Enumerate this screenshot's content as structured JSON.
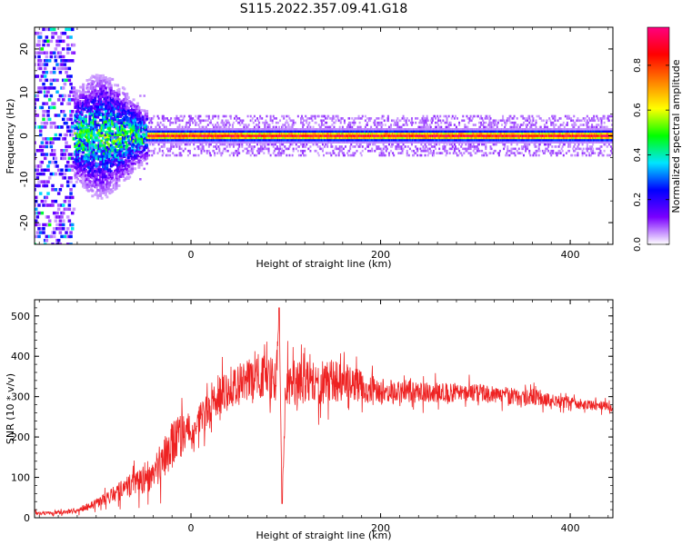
{
  "title": "S115.2022.357.09.41.G18",
  "chart_data": [
    {
      "type": "heatmap",
      "xlabel": "Height of straight line (km)",
      "ylabel": "Frequency (Hz)",
      "xlim": [
        -165,
        445
      ],
      "ylim": [
        -25,
        25
      ],
      "xticks": [
        0,
        200,
        400
      ],
      "yticks": [
        -20,
        -10,
        0,
        10,
        20
      ],
      "colorbar": {
        "label": "Normalized spectral amplitude",
        "range": [
          0,
          0.97
        ],
        "ticks": [
          0.0,
          0.2,
          0.4,
          0.6,
          0.8
        ],
        "colormap": [
          "#ffffff",
          "#7a00ff",
          "#0000ff",
          "#00e5ff",
          "#00ff00",
          "#ffff00",
          "#ff8000",
          "#ff0000",
          "#ff0080"
        ]
      },
      "features": [
        {
          "x_range": [
            -165,
            -122
          ],
          "freq_range": [
            -25,
            25
          ],
          "amplitude": 0.15
        },
        {
          "x_range": [
            -122,
            -45
          ],
          "freq_range": [
            -8,
            8
          ],
          "amplitude": 0.3
        },
        {
          "x_range": [
            -45,
            445
          ],
          "freq_range": [
            -1,
            1
          ],
          "amplitude": 0.95
        }
      ]
    },
    {
      "type": "line",
      "xlabel": "Height of straight line (km)",
      "ylabel": "SNR (10 * v/v)",
      "xlim": [
        -165,
        445
      ],
      "ylim": [
        0,
        540
      ],
      "xticks": [
        0,
        200,
        400
      ],
      "yticks": [
        0,
        100,
        200,
        300,
        400,
        500
      ],
      "line_color": "#ee2222",
      "series": [
        {
          "x": [
            -165,
            -140,
            -120,
            -100,
            -80,
            -60,
            -40,
            -30,
            -20,
            -10,
            0,
            10,
            20,
            30,
            40,
            50,
            60,
            70,
            80,
            90,
            93,
            96,
            100,
            110,
            120,
            130,
            140,
            150,
            160,
            180,
            200,
            220,
            240,
            260,
            280,
            300,
            320,
            340,
            360,
            380,
            400,
            420,
            445
          ],
          "y": [
            12,
            12,
            18,
            35,
            60,
            85,
            110,
            140,
            180,
            200,
            215,
            245,
            275,
            300,
            320,
            330,
            345,
            350,
            350,
            340,
            520,
            35,
            330,
            330,
            335,
            340,
            340,
            340,
            335,
            325,
            315,
            310,
            310,
            310,
            310,
            310,
            305,
            300,
            300,
            290,
            285,
            280,
            275
          ],
          "noise_amplitude": [
            6,
            6,
            8,
            15,
            25,
            40,
            55,
            65,
            75,
            70,
            60,
            55,
            55,
            60,
            65,
            70,
            70,
            70,
            70,
            70,
            0,
            0,
            70,
            70,
            70,
            70,
            70,
            65,
            60,
            50,
            40,
            35,
            32,
            30,
            30,
            28,
            28,
            28,
            25,
            20,
            18,
            15,
            15
          ]
        }
      ]
    }
  ]
}
